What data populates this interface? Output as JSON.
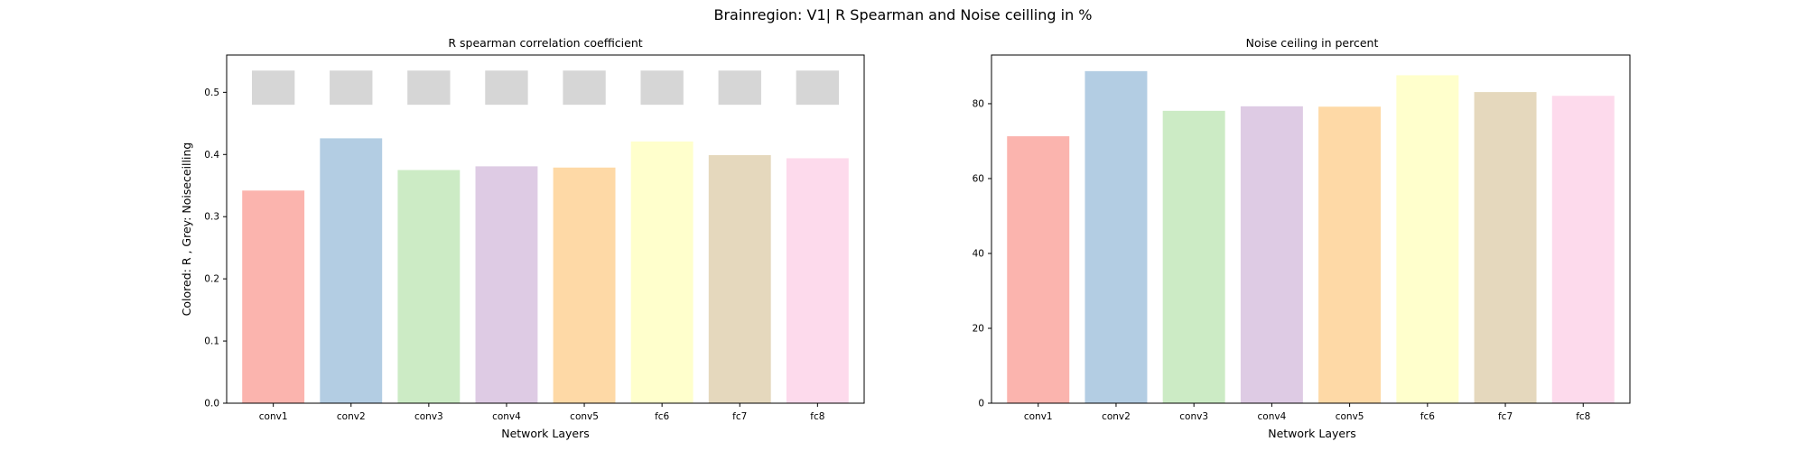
{
  "figure_title": "Brainregion: V1| R Spearman and Noise ceilling in %",
  "colors": [
    "#fbb4ae",
    "#b3cde3",
    "#ccebc5",
    "#decbe4",
    "#fed9a6",
    "#ffffcc",
    "#e5d8bd",
    "#fddaec"
  ],
  "noise_color": "#d6d6d6",
  "chart_data": [
    {
      "type": "bar",
      "title": "R spearman correlation coefficient",
      "xlabel": "Network Layers",
      "ylabel": "Colored: R , Grey: Noiseceilling",
      "categories": [
        "conv1",
        "conv2",
        "conv3",
        "conv4",
        "conv5",
        "fc6",
        "fc7",
        "fc8"
      ],
      "values": [
        0.342,
        0.426,
        0.375,
        0.381,
        0.379,
        0.421,
        0.399,
        0.394
      ],
      "noise_ceiling": {
        "lower": 0.48,
        "upper": 0.535
      },
      "ylim": [
        0,
        0.56
      ],
      "yticks": [
        "0.0",
        "0.1",
        "0.2",
        "0.3",
        "0.4",
        "0.5"
      ],
      "ytick_values": [
        0,
        0.1,
        0.2,
        0.3,
        0.4,
        0.5
      ]
    },
    {
      "type": "bar",
      "title": "Noise ceiling in percent",
      "xlabel": "Network Layers",
      "ylabel": "",
      "categories": [
        "conv1",
        "conv2",
        "conv3",
        "conv4",
        "conv5",
        "fc6",
        "fc7",
        "fc8"
      ],
      "values": [
        71.3,
        88.7,
        78.1,
        79.3,
        79.2,
        87.6,
        83.1,
        82.1
      ],
      "ylim": [
        0,
        93
      ],
      "yticks": [
        "0",
        "20",
        "40",
        "60",
        "80"
      ],
      "ytick_values": [
        0,
        20,
        40,
        60,
        80
      ]
    }
  ]
}
